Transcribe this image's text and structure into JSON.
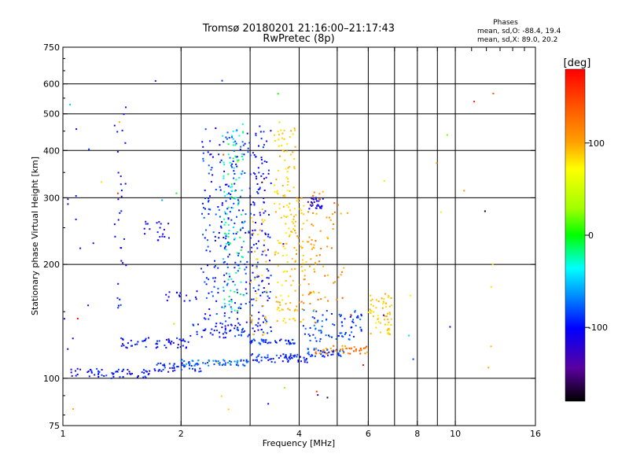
{
  "chart_data": {
    "type": "scatter",
    "title": "Tromsø 20180201 21:16:00–21:17:43",
    "subtitle": "RwPretec (8p)",
    "xlabel": "Frequency [MHz]",
    "ylabel": "Stationary phase Virtual Height [km]",
    "x_scale": "log",
    "y_scale": "log",
    "xlim": [
      1,
      16
    ],
    "ylim": [
      75,
      750
    ],
    "x_ticks": [
      {
        "value": 1,
        "label": "1"
      },
      {
        "value": 2,
        "label": "2"
      },
      {
        "value": 4,
        "label": "4"
      },
      {
        "value": 6,
        "label": "6"
      },
      {
        "value": 8,
        "label": "8"
      },
      {
        "value": 10,
        "label": "10"
      },
      {
        "value": 16,
        "label": "16"
      }
    ],
    "x_gridlines": [
      1,
      2,
      3,
      4,
      5,
      6,
      7,
      8,
      9,
      10,
      16
    ],
    "y_ticks": [
      {
        "value": 75,
        "label": "75"
      },
      {
        "value": 100,
        "label": "100"
      },
      {
        "value": 200,
        "label": "200"
      },
      {
        "value": 300,
        "label": "300"
      },
      {
        "value": 400,
        "label": "400"
      },
      {
        "value": 500,
        "label": "500"
      },
      {
        "value": 600,
        "label": "600"
      },
      {
        "value": 750,
        "label": "750"
      }
    ],
    "y_gridlines": [
      100,
      200,
      300,
      400,
      500,
      600
    ],
    "grid": true,
    "legend": {
      "title": "Phases",
      "lines": [
        "mean, sd,O:  -88.4, 19.4",
        "mean, sd,X:  89.0, 20.2"
      ],
      "position": "top-right"
    },
    "colorbar": {
      "label": "[deg]",
      "range": [
        -180,
        180
      ],
      "ticks": [
        {
          "value": 100,
          "label": "100"
        },
        {
          "value": 0,
          "label": "0"
        },
        {
          "value": -100,
          "label": "-100"
        }
      ],
      "colormap": "black-purple-blue-cyan-green-yellow-orange-red"
    },
    "traces": [
      {
        "name": "",
        "freq_range": [
          1.05,
          1.7
        ],
        "height_range": [
          100,
          106
        ],
        "phase": -100,
        "count": 60
      },
      {
        "name": "",
        "freq_range": [
          1.7,
          2.25
        ],
        "height_range": [
          104,
          110
        ],
        "phase": -95,
        "count": 45
      },
      {
        "name": "",
        "freq_range": [
          2.0,
          3.0
        ],
        "height_range": [
          108,
          112
        ],
        "phase": -70,
        "count": 60
      },
      {
        "name": "",
        "freq_range": [
          3.0,
          4.2
        ],
        "height_range": [
          110,
          116
        ],
        "phase": -90,
        "count": 60
      },
      {
        "name": "",
        "freq_range": [
          4.2,
          5.2
        ],
        "height_range": [
          114,
          120
        ],
        "phase": -85,
        "count": 40
      },
      {
        "name": "",
        "freq_range": [
          4.4,
          6.0
        ],
        "height_range": [
          116,
          122
        ],
        "phase": 130,
        "count": 45
      },
      {
        "name": "",
        "freq_range": [
          1.4,
          2.1
        ],
        "height_range": [
          120,
          128
        ],
        "phase": -100,
        "count": 55
      },
      {
        "name": "",
        "freq_range": [
          2.1,
          3.0
        ],
        "height_range": [
          128,
          140
        ],
        "phase": -95,
        "count": 55
      },
      {
        "name": "",
        "freq_range": [
          3.0,
          3.9
        ],
        "height_range": [
          123,
          127
        ],
        "phase": -90,
        "count": 40
      },
      {
        "name": "",
        "freq_range": [
          4.1,
          5.8
        ],
        "height_range": [
          125,
          152
        ],
        "phase": -80,
        "count": 80
      },
      {
        "name": "",
        "freq_range": [
          6.0,
          6.9
        ],
        "height_range": [
          130,
          168
        ],
        "phase": 95,
        "count": 60
      },
      {
        "name": "",
        "freq_range": [
          2.25,
          3.0
        ],
        "height_range": [
          140,
          460
        ],
        "phase": -90,
        "count": 230
      },
      {
        "name": "",
        "freq_range": [
          2.55,
          2.9
        ],
        "height_range": [
          150,
          470
        ],
        "phase": -25,
        "count": 100
      },
      {
        "name": "",
        "freq_range": [
          3.0,
          3.4
        ],
        "height_range": [
          130,
          470
        ],
        "phase": -100,
        "count": 140
      },
      {
        "name": "",
        "freq_range": [
          3.0,
          3.3
        ],
        "height_range": [
          130,
          280
        ],
        "phase": 100,
        "count": 35
      },
      {
        "name": "",
        "freq_range": [
          3.45,
          3.95
        ],
        "height_range": [
          140,
          460
        ],
        "phase": 95,
        "count": 140
      },
      {
        "name": "",
        "freq_range": [
          3.9,
          4.4
        ],
        "height_range": [
          140,
          300
        ],
        "phase": 110,
        "count": 70
      },
      {
        "name": "",
        "freq_range": [
          4.2,
          4.6
        ],
        "height_range": [
          280,
          300
        ],
        "phase": -110,
        "count": 30
      },
      {
        "name": "",
        "freq_range": [
          4.3,
          5.2
        ],
        "height_range": [
          160,
          320
        ],
        "phase": 120,
        "count": 50
      },
      {
        "name": "",
        "freq_range": [
          1.6,
          1.9
        ],
        "height_range": [
          230,
          260
        ],
        "phase": -110,
        "count": 20
      },
      {
        "name": "",
        "freq_range": [
          1.8,
          2.2
        ],
        "height_range": [
          160,
          170
        ],
        "phase": -110,
        "count": 15
      },
      {
        "name": "",
        "freq_range": [
          1.35,
          1.45
        ],
        "height_range": [
          150,
          530
        ],
        "phase": -100,
        "count": 30
      },
      {
        "name": "",
        "freq_range": [
          1.0,
          1.2
        ],
        "height_range": [
          90,
          610
        ],
        "phase": -105,
        "count": 12
      },
      {
        "name": "",
        "freq_range": [
          1.0,
          12.5
        ],
        "height_range": [
          78,
          620
        ],
        "phase": 40,
        "count": 50
      }
    ]
  }
}
